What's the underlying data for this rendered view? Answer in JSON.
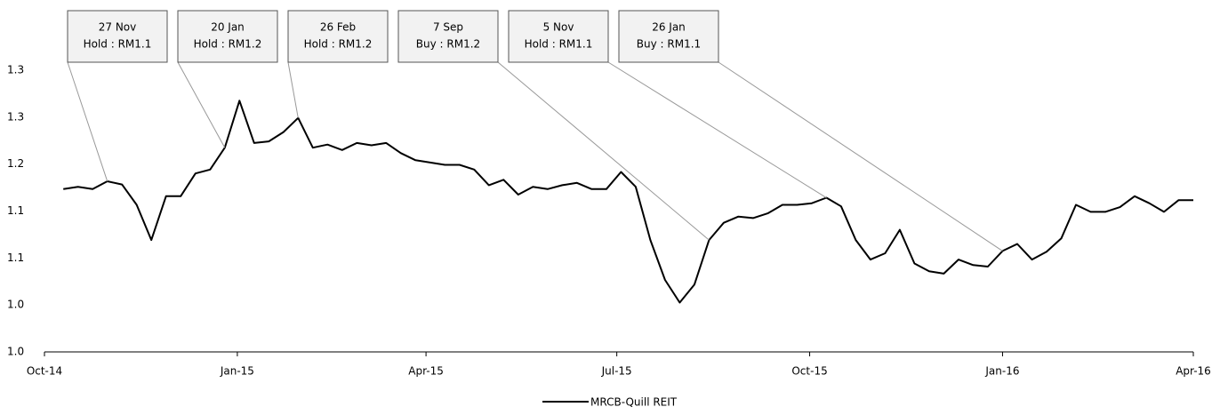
{
  "chart_data": {
    "type": "line",
    "x": [
      "2014-10-10",
      "2014-10-17",
      "2014-10-24",
      "2014-10-31",
      "2014-11-07",
      "2014-11-14",
      "2014-11-21",
      "2014-11-28",
      "2014-12-05",
      "2014-12-12",
      "2014-12-19",
      "2014-12-26",
      "2015-01-02",
      "2015-01-09",
      "2015-01-16",
      "2015-01-23",
      "2015-01-30",
      "2015-02-06",
      "2015-02-13",
      "2015-02-20",
      "2015-02-27",
      "2015-03-06",
      "2015-03-13",
      "2015-03-20",
      "2015-03-27",
      "2015-04-03",
      "2015-04-10",
      "2015-04-17",
      "2015-04-24",
      "2015-05-01",
      "2015-05-08",
      "2015-05-15",
      "2015-05-22",
      "2015-05-29",
      "2015-06-05",
      "2015-06-12",
      "2015-06-19",
      "2015-06-26",
      "2015-07-03",
      "2015-07-10",
      "2015-07-17",
      "2015-07-24",
      "2015-07-31",
      "2015-08-07",
      "2015-08-14",
      "2015-08-21",
      "2015-08-28",
      "2015-09-04",
      "2015-09-11",
      "2015-09-18",
      "2015-09-25",
      "2015-10-02",
      "2015-10-09",
      "2015-10-16",
      "2015-10-23",
      "2015-10-30",
      "2015-11-06",
      "2015-11-13",
      "2015-11-20",
      "2015-11-27",
      "2015-12-04",
      "2015-12-11",
      "2015-12-18",
      "2015-12-25",
      "2016-01-01",
      "2016-01-08",
      "2016-01-15",
      "2016-01-22",
      "2016-01-29",
      "2016-02-05",
      "2016-02-12",
      "2016-02-19",
      "2016-02-26",
      "2016-03-04",
      "2016-03-11",
      "2016-03-18",
      "2016-03-25",
      "2016-04-01"
    ],
    "series": [
      {
        "name": "MRCB-Quill REIT",
        "color": "#000000",
        "values": [
          1.168,
          1.171,
          1.168,
          1.178,
          1.174,
          1.148,
          1.103,
          1.159,
          1.159,
          1.188,
          1.193,
          1.221,
          1.281,
          1.227,
          1.229,
          1.241,
          1.259,
          1.221,
          1.225,
          1.218,
          1.227,
          1.224,
          1.227,
          1.214,
          1.205,
          1.202,
          1.199,
          1.199,
          1.193,
          1.173,
          1.18,
          1.161,
          1.171,
          1.168,
          1.173,
          1.176,
          1.168,
          1.168,
          1.19,
          1.171,
          1.103,
          1.052,
          1.023,
          1.046,
          1.103,
          1.125,
          1.133,
          1.131,
          1.137,
          1.148,
          1.148,
          1.15,
          1.157,
          1.146,
          1.103,
          1.078,
          1.086,
          1.116,
          1.073,
          1.063,
          1.06,
          1.078,
          1.071,
          1.069,
          1.089,
          1.098,
          1.078,
          1.088,
          1.105,
          1.148,
          1.139,
          1.139,
          1.145,
          1.159,
          1.15,
          1.139,
          1.154,
          1.154
        ]
      }
    ],
    "xlim": [
      "2014-10-01",
      "2016-04-01"
    ],
    "xticks": [
      {
        "value": "2014-10-01",
        "label": "Oct-14"
      },
      {
        "value": "2015-01-01",
        "label": "Jan-15"
      },
      {
        "value": "2015-04-01",
        "label": "Apr-15"
      },
      {
        "value": "2015-07-01",
        "label": "Jul-15"
      },
      {
        "value": "2015-10-01",
        "label": "Oct-15"
      },
      {
        "value": "2016-01-01",
        "label": "Jan-16"
      },
      {
        "value": "2016-04-01",
        "label": "Apr-16"
      }
    ],
    "ylim": [
      0.96,
      1.32
    ],
    "yticks": [
      {
        "value": 0.96,
        "label": "1.0"
      },
      {
        "value": 1.02,
        "label": "1.0"
      },
      {
        "value": 1.08,
        "label": "1.1"
      },
      {
        "value": 1.14,
        "label": "1.1"
      },
      {
        "value": 1.2,
        "label": "1.2"
      },
      {
        "value": 1.26,
        "label": "1.3"
      },
      {
        "value": 1.32,
        "label": "1.3"
      }
    ],
    "annotations": [
      {
        "x": "2014-10-31",
        "date": "27 Nov",
        "text": "Hold : RM1.1"
      },
      {
        "x": "2014-12-26",
        "date": "20 Jan",
        "text": "Hold : RM1.2"
      },
      {
        "x": "2015-01-30",
        "date": "26 Feb",
        "text": "Hold : RM1.2"
      },
      {
        "x": "2015-08-14",
        "date": "7 Sep",
        "text": "Buy : RM1.2"
      },
      {
        "x": "2015-10-09",
        "date": "5 Nov",
        "text": "Hold : RM1.1"
      },
      {
        "x": "2016-01-01",
        "date": "26 Jan",
        "text": "Buy : RM1.1"
      }
    ],
    "legend": "bottom"
  }
}
